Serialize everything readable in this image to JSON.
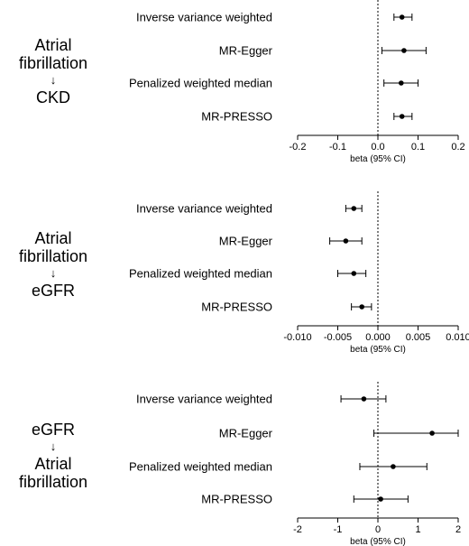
{
  "chart_data": [
    {
      "type": "forest",
      "exposure": "Atrial fibrillation",
      "arrow": "↓",
      "outcome": "CKD",
      "methods": [
        "Inverse variance weighted",
        "MR-Egger",
        "Penalized weighted median",
        "MR-PRESSO"
      ],
      "estimates": [
        {
          "beta": 0.06,
          "lower": 0.04,
          "upper": 0.085
        },
        {
          "beta": 0.065,
          "lower": 0.01,
          "upper": 0.12
        },
        {
          "beta": 0.058,
          "lower": 0.015,
          "upper": 0.1
        },
        {
          "beta": 0.06,
          "lower": 0.04,
          "upper": 0.085
        }
      ],
      "xlim": [
        -0.2,
        0.2
      ],
      "xticks": [
        -0.2,
        -0.1,
        0.0,
        0.1,
        0.2
      ],
      "xtick_labels": [
        "-0.2",
        "-0.1",
        "0.0",
        "0.1",
        "0.2"
      ],
      "xlabel": "beta (95% CI)",
      "reference_line": 0
    },
    {
      "type": "forest",
      "exposure": "Atrial fibrillation",
      "arrow": "↓",
      "outcome": "eGFR",
      "methods": [
        "Inverse variance weighted",
        "MR-Egger",
        "Penalized weighted median",
        "MR-PRESSO"
      ],
      "estimates": [
        {
          "beta": -0.003,
          "lower": -0.004,
          "upper": -0.002
        },
        {
          "beta": -0.004,
          "lower": -0.006,
          "upper": -0.002
        },
        {
          "beta": -0.003,
          "lower": -0.005,
          "upper": -0.0015
        },
        {
          "beta": -0.002,
          "lower": -0.0033,
          "upper": -0.0008
        }
      ],
      "xlim": [
        -0.01,
        0.01
      ],
      "xticks": [
        -0.01,
        -0.005,
        0.0,
        0.005,
        0.01
      ],
      "xtick_labels": [
        "-0.010",
        "-0.005",
        "0.000",
        "0.005",
        "0.010"
      ],
      "xlabel": "beta (95% CI)",
      "reference_line": 0
    },
    {
      "type": "forest",
      "exposure": "eGFR",
      "arrow": "↓",
      "outcome": "Atrial fibrillation",
      "methods": [
        "Inverse variance weighted",
        "MR-Egger",
        "Penalized weighted median",
        "MR-PRESSO"
      ],
      "estimates": [
        {
          "beta": -0.35,
          "lower": -0.92,
          "upper": 0.2
        },
        {
          "beta": 1.35,
          "lower": -0.1,
          "upper": 2.0
        },
        {
          "beta": 0.38,
          "lower": -0.45,
          "upper": 1.22
        },
        {
          "beta": 0.07,
          "lower": -0.6,
          "upper": 0.75
        }
      ],
      "xlim": [
        -2,
        2
      ],
      "xticks": [
        -2,
        -1,
        0,
        1,
        2
      ],
      "xtick_labels": [
        "-2",
        "-1",
        "0",
        "1",
        "2"
      ],
      "xlabel": "beta (95% CI)",
      "reference_line": 0
    }
  ]
}
